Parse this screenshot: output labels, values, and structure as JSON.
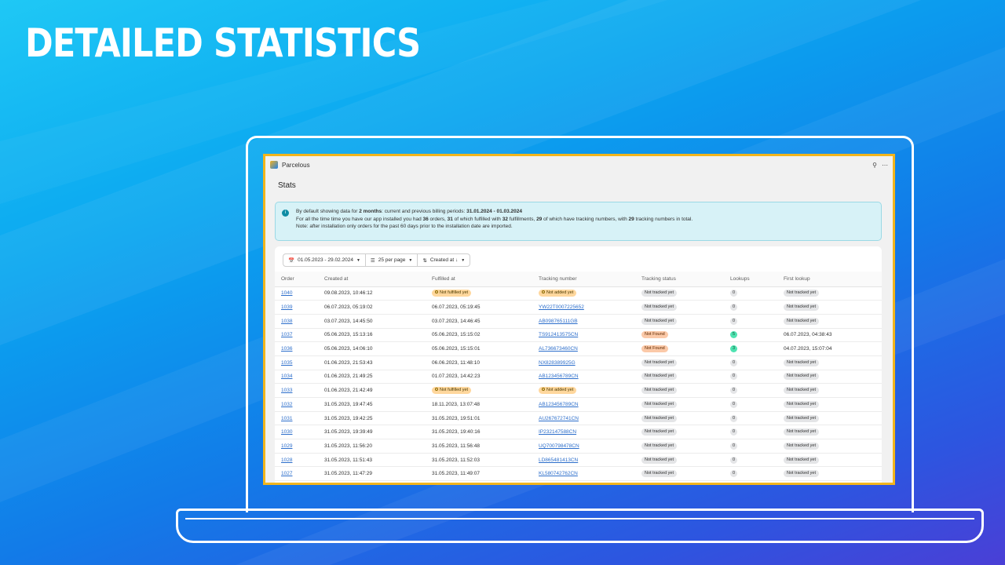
{
  "hero": {
    "title": "DETAILED STATISTICS"
  },
  "app": {
    "name": "Parcelous",
    "pin_icon": "pin-icon",
    "menu_icon": "ellipsis-icon"
  },
  "page": {
    "title": "Stats"
  },
  "banner": {
    "icon": "info-icon",
    "line1_pre": "By default showing data for ",
    "line1_bold1": "2 months",
    "line1_mid": ": current and previous billing periods: ",
    "line1_bold2": "31.01.2024 - 01.03.2024",
    "line2_p1": "For all the time time you have our app installed you had ",
    "line2_b1": "36",
    "line2_p2": " orders, ",
    "line2_b2": "31",
    "line2_p3": " of which fulfilled with ",
    "line2_b3": "32",
    "line2_p4": " fulfillments, ",
    "line2_b4": "29",
    "line2_p5": " of which have tracking numbers, with ",
    "line2_b5": "29",
    "line2_p6": " tracking numbers in total.",
    "line3": "Note: after installation only orders for the past 60 days prior to the installation date are imported."
  },
  "toolbar": {
    "date_range": "01.05.2023 - 29.02.2024",
    "per_page": "25 per page",
    "sort": "Created at ↓"
  },
  "table": {
    "headers": [
      "Order",
      "Created at",
      "Fulfilled at",
      "Tracking number",
      "Tracking status",
      "Lookups",
      "First lookup"
    ],
    "rows": [
      {
        "order": "1040",
        "created": "09.08.2023, 10:46:12",
        "fulfilled": "Not fulfilled yet",
        "tracking": "Not added yet",
        "status": "Not tracked yet",
        "lookups": "0",
        "first": "Not tracked yet"
      },
      {
        "order": "1039",
        "created": "06.07.2023, 05:19:02",
        "fulfilled": "06.07.2023, 05:19:45",
        "tracking": "YW22T0007225652",
        "status": "Not tracked yet",
        "lookups": "0",
        "first": "Not tracked yet"
      },
      {
        "order": "1038",
        "created": "03.07.2023, 14:45:50",
        "fulfilled": "03.07.2023, 14:46:45",
        "tracking": "AB098765111GB",
        "status": "Not tracked yet",
        "lookups": "0",
        "first": "Not tracked yet"
      },
      {
        "order": "1037",
        "created": "05.06.2023, 15:13:16",
        "fulfilled": "05.06.2023, 15:15:02",
        "tracking": "TS912413575CN",
        "status": "Not Found",
        "lookups": "5",
        "first": "06.07.2023, 04:38:43"
      },
      {
        "order": "1036",
        "created": "05.06.2023, 14:06:10",
        "fulfilled": "05.06.2023, 15:15:01",
        "tracking": "AL736673460CN",
        "status": "Not Found",
        "lookups": "3",
        "first": "04.07.2023, 15:07:04"
      },
      {
        "order": "1035",
        "created": "01.06.2023, 21:53:43",
        "fulfilled": "06.06.2023, 11:48:10",
        "tracking": "NX828389925G",
        "status": "Not tracked yet",
        "lookups": "0",
        "first": "Not tracked yet"
      },
      {
        "order": "1034",
        "created": "01.06.2023, 21:49:25",
        "fulfilled": "01.07.2023, 14:42:23",
        "tracking": "AB123456789CN",
        "status": "Not tracked yet",
        "lookups": "0",
        "first": "Not tracked yet"
      },
      {
        "order": "1033",
        "created": "01.06.2023, 21:42:49",
        "fulfilled": "Not fulfilled yet",
        "tracking": "Not added yet",
        "status": "Not tracked yet",
        "lookups": "0",
        "first": "Not tracked yet"
      },
      {
        "order": "1032",
        "created": "31.05.2023, 19:47:45",
        "fulfilled": "18.11.2023, 13:07:48",
        "tracking": "AB123456789CN",
        "status": "Not tracked yet",
        "lookups": "0",
        "first": "Not tracked yet"
      },
      {
        "order": "1031",
        "created": "31.05.2023, 19:42:25",
        "fulfilled": "31.05.2023, 19:51:01",
        "tracking": "AU267672741CN",
        "status": "Not tracked yet",
        "lookups": "0",
        "first": "Not tracked yet"
      },
      {
        "order": "1030",
        "created": "31.05.2023, 19:39:49",
        "fulfilled": "31.05.2023, 19:40:16",
        "tracking": "IP232147588CN",
        "status": "Not tracked yet",
        "lookups": "0",
        "first": "Not tracked yet"
      },
      {
        "order": "1029",
        "created": "31.05.2023, 11:56:20",
        "fulfilled": "31.05.2023, 11:56:48",
        "tracking": "UQ700798478CN",
        "status": "Not tracked yet",
        "lookups": "0",
        "first": "Not tracked yet"
      },
      {
        "order": "1028",
        "created": "31.05.2023, 11:51:43",
        "fulfilled": "31.05.2023, 11:52:03",
        "tracking": "LD865481413CN",
        "status": "Not tracked yet",
        "lookups": "0",
        "first": "Not tracked yet"
      },
      {
        "order": "1027",
        "created": "31.05.2023, 11:47:29",
        "fulfilled": "31.05.2023, 11:49:07",
        "tracking": "KL580742762CN",
        "status": "Not tracked yet",
        "lookups": "0",
        "first": "Not tracked yet"
      }
    ]
  }
}
